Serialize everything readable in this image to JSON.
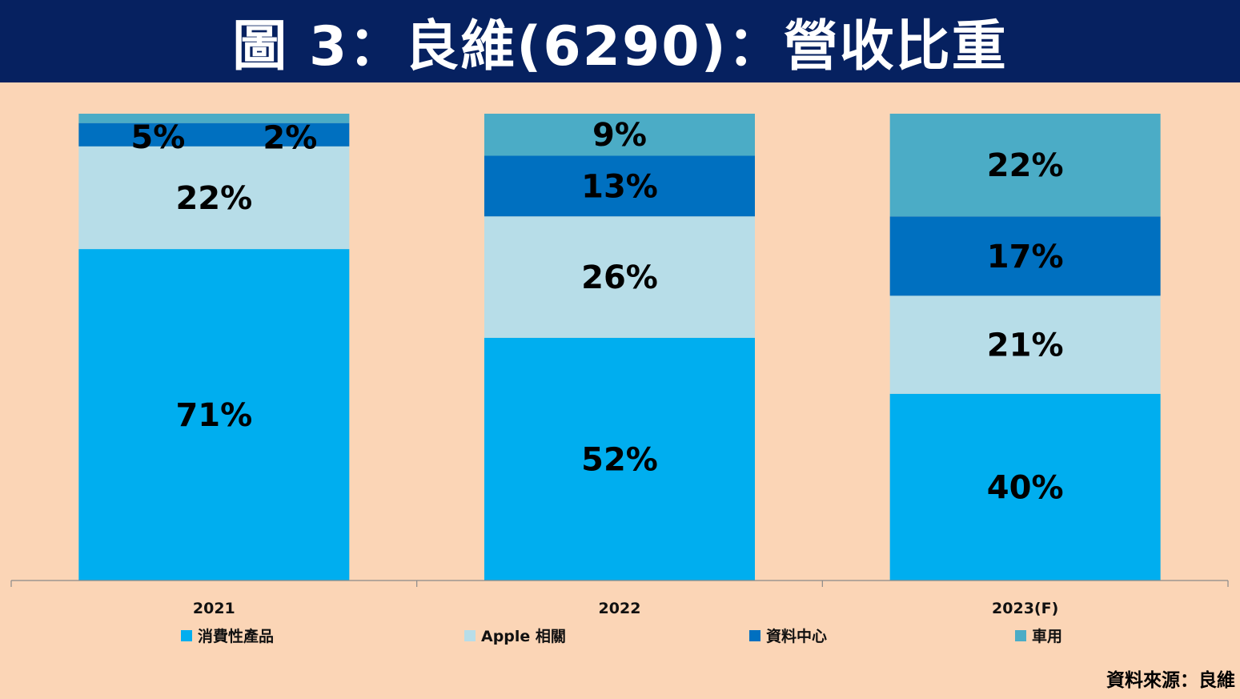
{
  "header": {
    "title": "圖 3：良維(6290)：營收比重"
  },
  "source": "資料來源：良維",
  "colors": {
    "background": "#FBD5B6",
    "title_bar": "#062160",
    "series": [
      "#00AEEF",
      "#B7DDE8",
      "#0070C0",
      "#4BACC6"
    ]
  },
  "chart_data": {
    "type": "bar",
    "stacked": true,
    "normalized": true,
    "title": "",
    "xlabel": "",
    "ylabel": "",
    "ylim": [
      0,
      100
    ],
    "grid": false,
    "legend_position": "bottom",
    "categories": [
      "2021",
      "2022",
      "2023(F)"
    ],
    "series": [
      {
        "name": "消費性產品",
        "values": [
          71,
          52,
          40
        ],
        "labels": [
          "71%",
          "52%",
          "40%"
        ]
      },
      {
        "name": "Apple 相關",
        "values": [
          22,
          26,
          21
        ],
        "labels": [
          "22%",
          "26%",
          "21%"
        ]
      },
      {
        "name": "資料中心",
        "values": [
          5,
          13,
          17
        ],
        "labels": [
          "5%",
          "13%",
          "17%"
        ]
      },
      {
        "name": "車用",
        "values": [
          2,
          9,
          22
        ],
        "labels": [
          "2%",
          "9%",
          "22%"
        ]
      }
    ]
  }
}
